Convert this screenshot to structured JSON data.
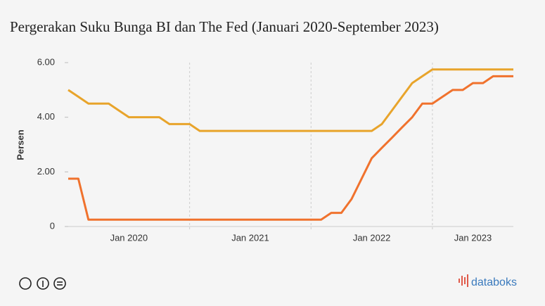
{
  "chart_data": {
    "type": "line",
    "title": "Pergerakan Suku Bunga BI dan The Fed (Januari 2020-September 2023)",
    "y_label": "Persen",
    "xlim": [
      0,
      44
    ],
    "xticks": [
      {
        "value": 0,
        "label": "Jan 2020"
      },
      {
        "value": 12,
        "label": "Jan 2021"
      },
      {
        "value": 24,
        "label": "Jan 2022"
      },
      {
        "value": 36,
        "label": "Jan 2023"
      }
    ],
    "ylim": [
      0,
      6
    ],
    "yticks": [
      0,
      {
        "value": 2,
        "label": "2.00"
      },
      {
        "value": 4,
        "label": "4.00"
      },
      {
        "value": 6,
        "label": "6.00"
      }
    ],
    "series": [
      {
        "color": "#e8a42b",
        "values": [
          5,
          4.75,
          4.5,
          4.5,
          4.5,
          4.25,
          4,
          4,
          4,
          4,
          3.75,
          3.75,
          3.75,
          3.5,
          3.5,
          3.5,
          3.5,
          3.5,
          3.5,
          3.5,
          3.5,
          3.5,
          3.5,
          3.5,
          3.5,
          3.5,
          3.5,
          3.5,
          3.5,
          3.5,
          3.5,
          3.75,
          4.25,
          4.75,
          5.25,
          5.5,
          5.75,
          5.75,
          5.75,
          5.75,
          5.75,
          5.75,
          5.75,
          5.75,
          5.75
        ]
      },
      {
        "color": "#f0722d",
        "values": [
          1.75,
          1.75,
          0.25,
          0.25,
          0.25,
          0.25,
          0.25,
          0.25,
          0.25,
          0.25,
          0.25,
          0.25,
          0.25,
          0.25,
          0.25,
          0.25,
          0.25,
          0.25,
          0.25,
          0.25,
          0.25,
          0.25,
          0.25,
          0.25,
          0.25,
          0.25,
          0.5,
          0.5,
          1,
          1.75,
          2.5,
          2.88,
          3.25,
          3.63,
          4,
          4.5,
          4.5,
          4.75,
          5,
          5,
          5.25,
          5.25,
          5.5,
          5.5,
          5.5
        ]
      }
    ],
    "grid": true
  },
  "footer": {
    "brand": "databoks"
  }
}
